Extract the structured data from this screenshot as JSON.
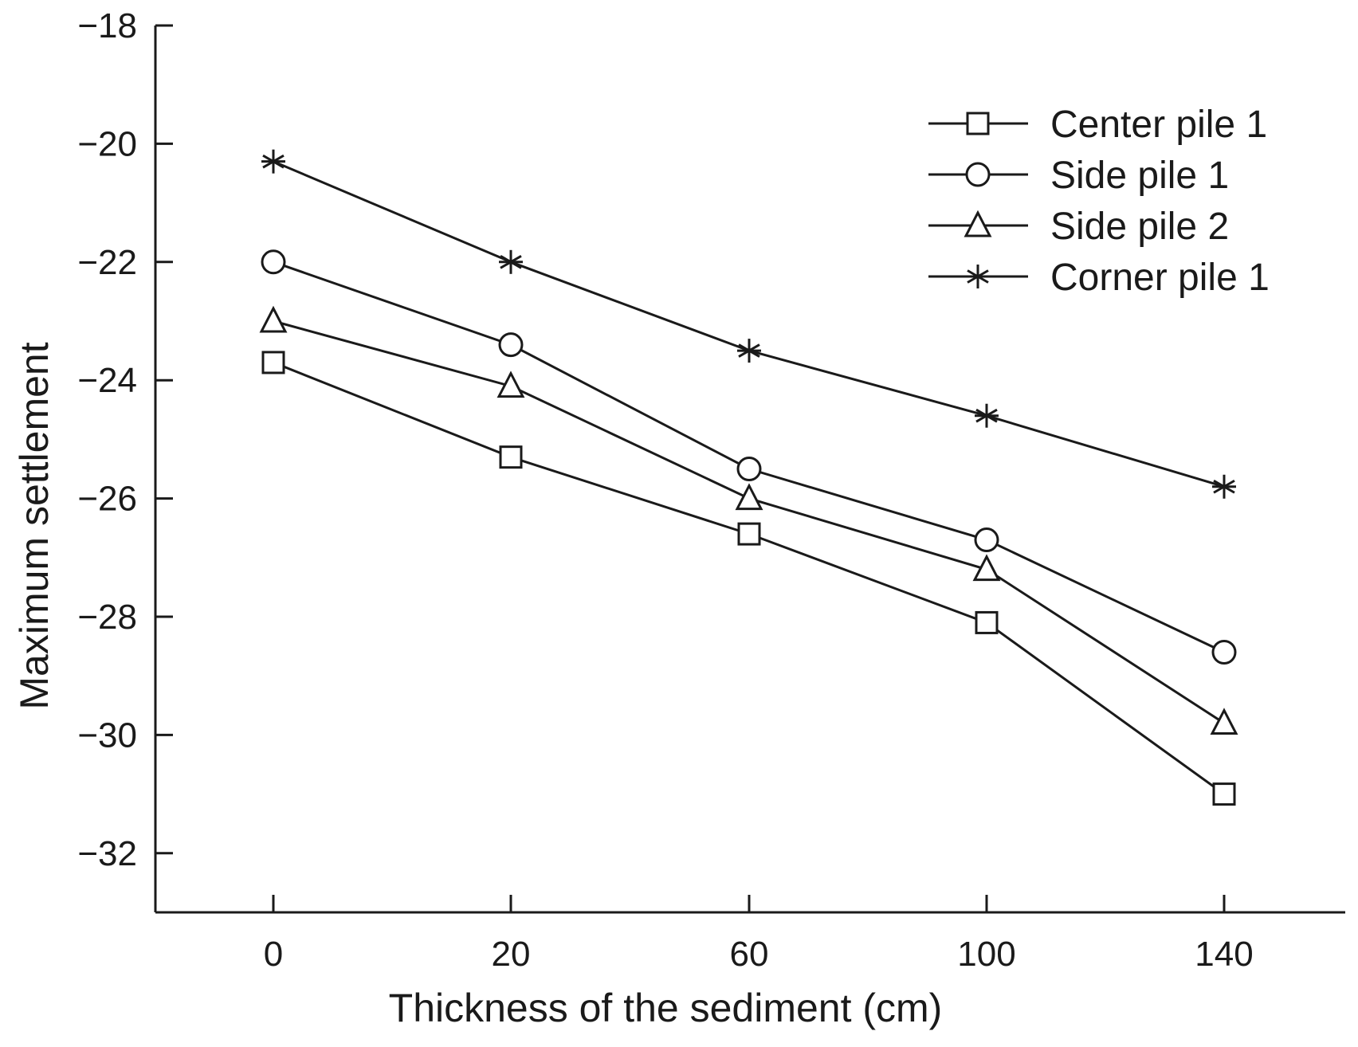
{
  "chart_data": {
    "type": "line",
    "xlabel": "Thickness of the sediment (cm)",
    "ylabel": "Maximum settlement",
    "x_categories": [
      "0",
      "20",
      "60",
      "100",
      "140"
    ],
    "ylim": [
      -33,
      -18
    ],
    "yticks": [
      "−18",
      "−20",
      "−22",
      "−24",
      "−26",
      "−28",
      "−30",
      "−32"
    ],
    "ytick_values": [
      -18,
      -20,
      -22,
      -24,
      -26,
      -28,
      -30,
      -32
    ],
    "grid": false,
    "legend_position": "top-right",
    "line_color": "#1a1a1a",
    "series": [
      {
        "name": "Center pile 1",
        "marker": "square",
        "values": [
          -23.7,
          -25.3,
          -26.6,
          -28.1,
          -31.0
        ]
      },
      {
        "name": "Side pile 1",
        "marker": "circle",
        "values": [
          -22.0,
          -23.4,
          -25.5,
          -26.7,
          -28.6
        ]
      },
      {
        "name": "Side pile 2",
        "marker": "triangle",
        "values": [
          -23.0,
          -24.1,
          -26.0,
          -27.2,
          -29.8
        ]
      },
      {
        "name": "Corner pile 1",
        "marker": "asterisk",
        "values": [
          -20.3,
          -22.0,
          -23.5,
          -24.6,
          -25.8
        ]
      }
    ]
  }
}
